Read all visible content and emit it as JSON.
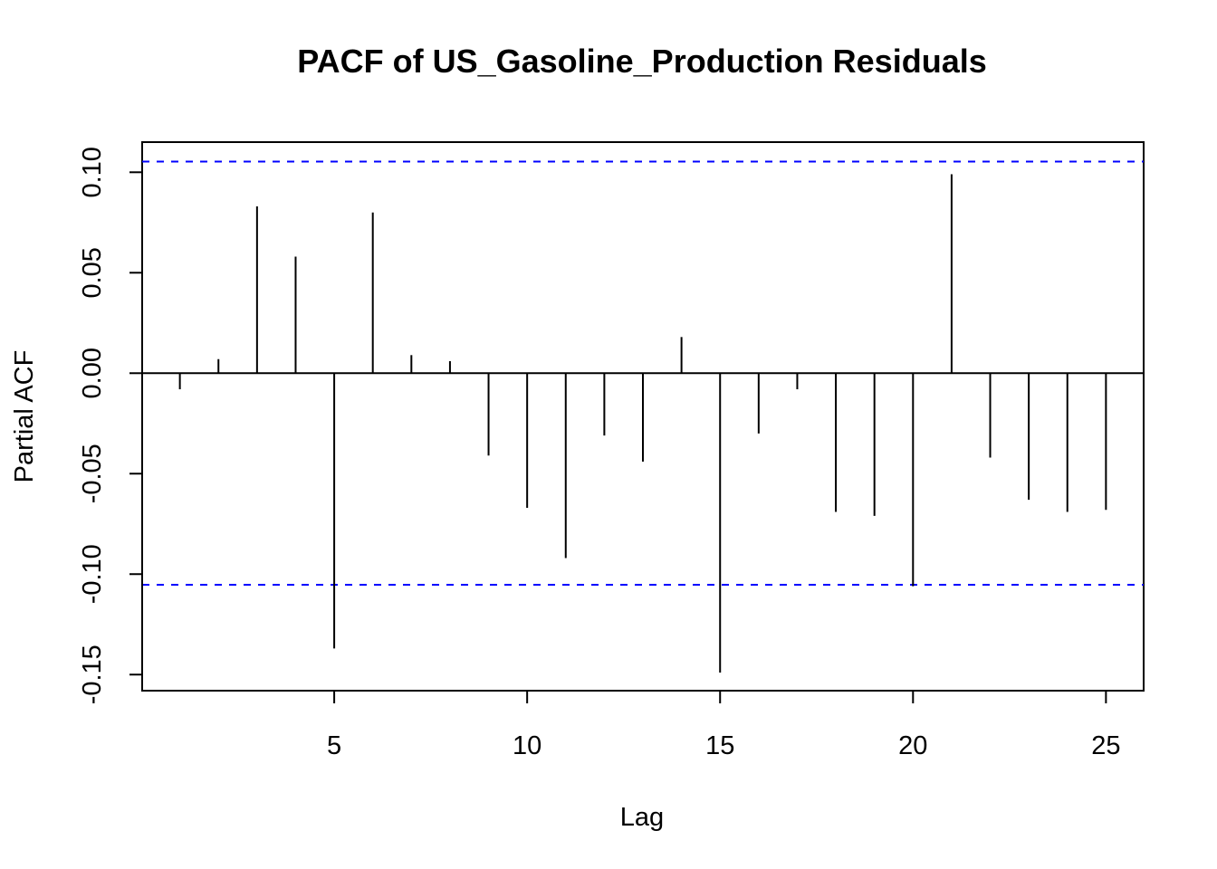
{
  "chart_data": {
    "type": "bar",
    "title": "PACF of US_Gasoline_Production Residuals",
    "xlabel": "Lag",
    "ylabel": "Partial ACF",
    "x": [
      1,
      2,
      3,
      4,
      5,
      6,
      7,
      8,
      9,
      10,
      11,
      12,
      13,
      14,
      15,
      16,
      17,
      18,
      19,
      20,
      21,
      22,
      23,
      24,
      25
    ],
    "values": [
      -0.008,
      0.007,
      0.083,
      0.058,
      -0.137,
      0.08,
      0.009,
      0.006,
      -0.041,
      -0.067,
      -0.092,
      -0.031,
      -0.044,
      0.018,
      -0.149,
      -0.03,
      -0.008,
      -0.069,
      -0.071,
      -0.106,
      0.099,
      -0.042,
      -0.063,
      -0.069,
      -0.068
    ],
    "xlim": [
      0.023,
      25.977
    ],
    "ylim": [
      -0.158,
      0.115
    ],
    "x_ticks": [
      5,
      10,
      15,
      20,
      25
    ],
    "x_tick_labels": [
      "5",
      "10",
      "15",
      "20",
      "25"
    ],
    "y_ticks": [
      -0.15,
      -0.1,
      -0.05,
      0.0,
      0.05,
      0.1
    ],
    "y_tick_labels": [
      "-0.15",
      "-0.10",
      "-0.05",
      "0.00",
      "0.05",
      "0.10"
    ],
    "confidence_band": 0.1053,
    "grid": false,
    "colors": {
      "spike": "#000000",
      "confidence_line": "#0000ff",
      "zero_line": "#000000"
    }
  }
}
